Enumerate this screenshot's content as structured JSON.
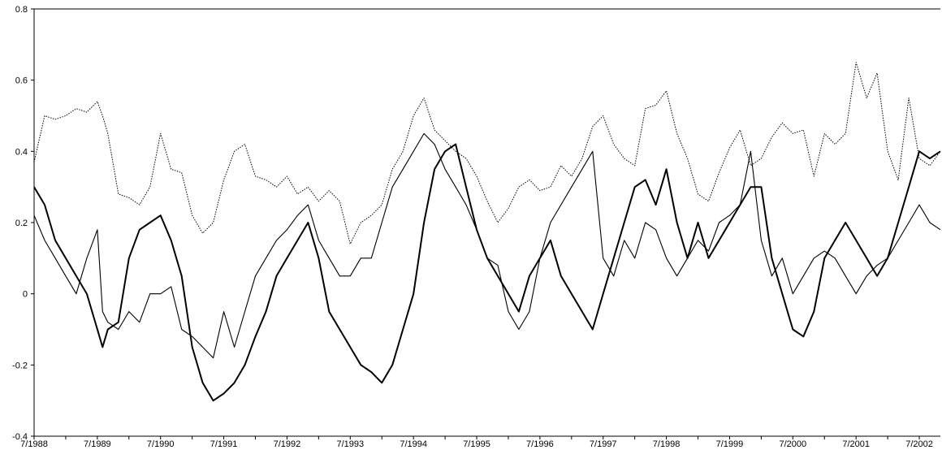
{
  "chart_data": {
    "type": "line",
    "title": "",
    "xlabel": "",
    "ylabel": "",
    "ylim": [
      -0.4,
      0.8
    ],
    "yticks": [
      -0.4,
      -0.2,
      0,
      0.2,
      0.4,
      0.6,
      0.8
    ],
    "ytick_labels": [
      "-0.4",
      "-0.2",
      "0",
      "0.2",
      "0.4",
      "0.6",
      "0.8"
    ],
    "xlim": [
      "1988-07",
      "2002-11"
    ],
    "xticks": [
      "1988-07",
      "1989-07",
      "1990-07",
      "1991-07",
      "1992-07",
      "1993-07",
      "1994-07",
      "1995-07",
      "1996-07",
      "1997-07",
      "1998-07",
      "1999-07",
      "2000-07",
      "2001-07",
      "2002-07"
    ],
    "xtick_labels": [
      "7/1988",
      "7/1989",
      "7/1990",
      "7/1991",
      "7/1992",
      "7/1993",
      "7/1994",
      "7/1995",
      "7/1996",
      "7/1997",
      "7/1998",
      "7/1999",
      "7/2000",
      "7/2001",
      "7/2002"
    ],
    "grid": false,
    "legend": "none",
    "series": [
      {
        "style": "dotted",
        "color": "#000000",
        "x": [
          "1988-07",
          "1988-09",
          "1988-11",
          "1989-01",
          "1989-03",
          "1989-05",
          "1989-07",
          "1989-08",
          "1989-09",
          "1989-11",
          "1990-01",
          "1990-03",
          "1990-05",
          "1990-07",
          "1990-09",
          "1990-11",
          "1991-01",
          "1991-03",
          "1991-05",
          "1991-07",
          "1991-09",
          "1991-11",
          "1992-01",
          "1992-03",
          "1992-05",
          "1992-07",
          "1992-09",
          "1992-11",
          "1993-01",
          "1993-03",
          "1993-05",
          "1993-07",
          "1993-09",
          "1993-11",
          "1994-01",
          "1994-03",
          "1994-05",
          "1994-07",
          "1994-09",
          "1994-11",
          "1995-01",
          "1995-03",
          "1995-05",
          "1995-07",
          "1995-09",
          "1995-11",
          "1996-01",
          "1996-03",
          "1996-05",
          "1996-07",
          "1996-09",
          "1996-11",
          "1997-01",
          "1997-03",
          "1997-05",
          "1997-07",
          "1997-09",
          "1997-11",
          "1998-01",
          "1998-03",
          "1998-05",
          "1998-07",
          "1998-09",
          "1998-11",
          "1999-01",
          "1999-03",
          "1999-05",
          "1999-07",
          "1999-09",
          "1999-11",
          "2000-01",
          "2000-03",
          "2000-05",
          "2000-07",
          "2000-09",
          "2000-11",
          "2001-01",
          "2001-03",
          "2001-05",
          "2001-07",
          "2001-09",
          "2001-11",
          "2002-01",
          "2002-03",
          "2002-05",
          "2002-07",
          "2002-09",
          "2002-11"
        ],
        "values": [
          0.37,
          0.5,
          0.49,
          0.5,
          0.52,
          0.51,
          0.54,
          0.5,
          0.45,
          0.28,
          0.27,
          0.25,
          0.3,
          0.45,
          0.35,
          0.34,
          0.22,
          0.17,
          0.2,
          0.32,
          0.4,
          0.42,
          0.33,
          0.32,
          0.3,
          0.33,
          0.28,
          0.3,
          0.26,
          0.29,
          0.26,
          0.14,
          0.2,
          0.22,
          0.25,
          0.35,
          0.4,
          0.5,
          0.55,
          0.46,
          0.43,
          0.4,
          0.38,
          0.33,
          0.26,
          0.2,
          0.24,
          0.3,
          0.32,
          0.29,
          0.3,
          0.36,
          0.33,
          0.38,
          0.47,
          0.5,
          0.42,
          0.38,
          0.36,
          0.52,
          0.53,
          0.57,
          0.45,
          0.38,
          0.28,
          0.26,
          0.34,
          0.41,
          0.46,
          0.36,
          0.38,
          0.44,
          0.48,
          0.45,
          0.46,
          0.33,
          0.45,
          0.42,
          0.45,
          0.65,
          0.55,
          0.62,
          0.4,
          0.32,
          0.55,
          0.38,
          0.36,
          0.4
        ]
      },
      {
        "style": "thin",
        "color": "#000000",
        "x": [
          "1988-07",
          "1988-09",
          "1988-11",
          "1989-01",
          "1989-03",
          "1989-05",
          "1989-07",
          "1989-08",
          "1989-09",
          "1989-11",
          "1990-01",
          "1990-03",
          "1990-05",
          "1990-07",
          "1990-09",
          "1990-11",
          "1991-01",
          "1991-03",
          "1991-05",
          "1991-07",
          "1991-09",
          "1991-11",
          "1992-01",
          "1992-03",
          "1992-05",
          "1992-07",
          "1992-09",
          "1992-11",
          "1993-01",
          "1993-03",
          "1993-05",
          "1993-07",
          "1993-09",
          "1993-11",
          "1994-01",
          "1994-03",
          "1994-05",
          "1994-07",
          "1994-09",
          "1994-11",
          "1995-01",
          "1995-03",
          "1995-05",
          "1995-07",
          "1995-09",
          "1995-11",
          "1996-01",
          "1996-03",
          "1996-05",
          "1996-07",
          "1996-09",
          "1996-11",
          "1997-01",
          "1997-03",
          "1997-05",
          "1997-07",
          "1997-09",
          "1997-11",
          "1998-01",
          "1998-03",
          "1998-05",
          "1998-07",
          "1998-09",
          "1998-11",
          "1999-01",
          "1999-03",
          "1999-05",
          "1999-07",
          "1999-09",
          "1999-11",
          "2000-01",
          "2000-03",
          "2000-05",
          "2000-07",
          "2000-09",
          "2000-11",
          "2001-01",
          "2001-03",
          "2001-05",
          "2001-07",
          "2001-09",
          "2001-11",
          "2002-01",
          "2002-03",
          "2002-05",
          "2002-07",
          "2002-09",
          "2002-11"
        ],
        "values": [
          0.22,
          0.15,
          0.1,
          0.05,
          0.0,
          0.1,
          0.18,
          -0.05,
          -0.08,
          -0.1,
          -0.05,
          -0.08,
          0.0,
          0.0,
          0.02,
          -0.1,
          -0.12,
          -0.15,
          -0.18,
          -0.05,
          -0.15,
          -0.05,
          0.05,
          0.1,
          0.15,
          0.18,
          0.22,
          0.25,
          0.15,
          0.1,
          0.05,
          0.05,
          0.1,
          0.1,
          0.2,
          0.3,
          0.35,
          0.4,
          0.45,
          0.42,
          0.35,
          0.3,
          0.25,
          0.18,
          0.1,
          0.08,
          -0.05,
          -0.1,
          -0.05,
          0.1,
          0.2,
          0.25,
          0.3,
          0.35,
          0.4,
          0.1,
          0.05,
          0.15,
          0.1,
          0.2,
          0.18,
          0.1,
          0.05,
          0.1,
          0.15,
          0.12,
          0.2,
          0.22,
          0.25,
          0.4,
          0.15,
          0.05,
          0.1,
          0.0,
          0.05,
          0.1,
          0.12,
          0.1,
          0.05,
          0.0,
          0.05,
          0.08,
          0.1,
          0.15,
          0.2,
          0.25,
          0.2,
          0.18
        ]
      },
      {
        "style": "thick",
        "color": "#000000",
        "x": [
          "1988-07",
          "1988-09",
          "1988-11",
          "1989-01",
          "1989-03",
          "1989-05",
          "1989-07",
          "1989-08",
          "1989-09",
          "1989-11",
          "1990-01",
          "1990-03",
          "1990-05",
          "1990-07",
          "1990-09",
          "1990-11",
          "1991-01",
          "1991-03",
          "1991-05",
          "1991-07",
          "1991-09",
          "1991-11",
          "1992-01",
          "1992-03",
          "1992-05",
          "1992-07",
          "1992-09",
          "1992-11",
          "1993-01",
          "1993-03",
          "1993-05",
          "1993-07",
          "1993-09",
          "1993-11",
          "1994-01",
          "1994-03",
          "1994-05",
          "1994-07",
          "1994-09",
          "1994-11",
          "1995-01",
          "1995-03",
          "1995-05",
          "1995-07",
          "1995-09",
          "1995-11",
          "1996-01",
          "1996-03",
          "1996-05",
          "1996-07",
          "1996-09",
          "1996-11",
          "1997-01",
          "1997-03",
          "1997-05",
          "1997-07",
          "1997-09",
          "1997-11",
          "1998-01",
          "1998-03",
          "1998-05",
          "1998-07",
          "1998-09",
          "1998-11",
          "1999-01",
          "1999-03",
          "1999-05",
          "1999-07",
          "1999-09",
          "1999-11",
          "2000-01",
          "2000-03",
          "2000-05",
          "2000-07",
          "2000-09",
          "2000-11",
          "2001-01",
          "2001-03",
          "2001-05",
          "2001-07",
          "2001-09",
          "2001-11",
          "2002-01",
          "2002-03",
          "2002-05",
          "2002-07",
          "2002-09",
          "2002-11"
        ],
        "values": [
          0.3,
          0.25,
          0.15,
          0.1,
          0.05,
          0.0,
          -0.1,
          -0.15,
          -0.1,
          -0.08,
          0.1,
          0.18,
          0.2,
          0.22,
          0.15,
          0.05,
          -0.15,
          -0.25,
          -0.3,
          -0.28,
          -0.25,
          -0.2,
          -0.12,
          -0.05,
          0.05,
          0.1,
          0.15,
          0.2,
          0.1,
          -0.05,
          -0.1,
          -0.15,
          -0.2,
          -0.22,
          -0.25,
          -0.2,
          -0.1,
          0.0,
          0.2,
          0.35,
          0.4,
          0.42,
          0.3,
          0.18,
          0.1,
          0.05,
          0.0,
          -0.05,
          0.05,
          0.1,
          0.15,
          0.05,
          0.0,
          -0.05,
          -0.1,
          0.0,
          0.1,
          0.2,
          0.3,
          0.32,
          0.25,
          0.35,
          0.2,
          0.1,
          0.2,
          0.1,
          0.15,
          0.2,
          0.25,
          0.3,
          0.3,
          0.1,
          0.0,
          -0.1,
          -0.12,
          -0.05,
          0.1,
          0.15,
          0.2,
          0.15,
          0.1,
          0.05,
          0.1,
          0.2,
          0.3,
          0.4,
          0.38,
          0.4
        ]
      }
    ]
  }
}
